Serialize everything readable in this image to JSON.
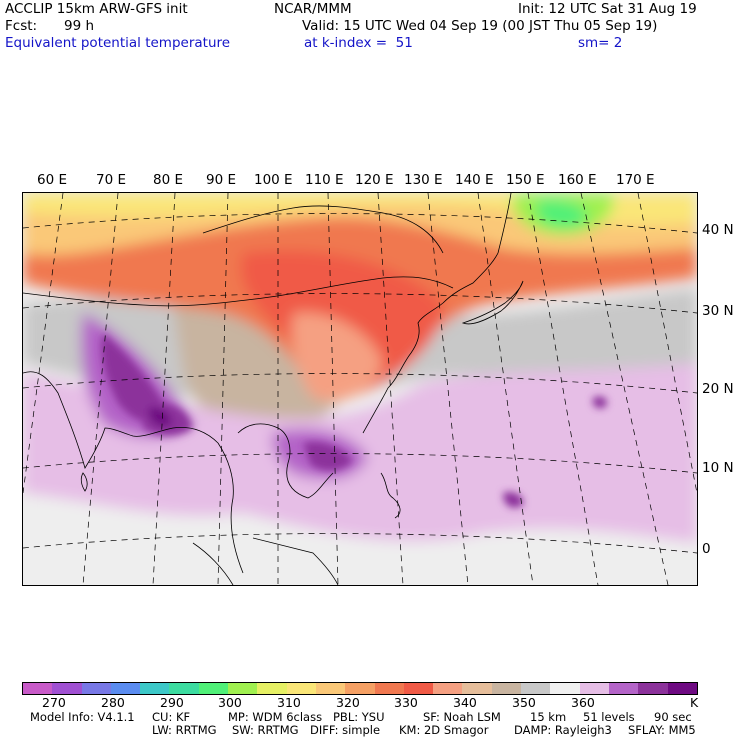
{
  "header": {
    "model_title": "ACCLIP 15km ARW-GFS init",
    "org": "NCAR/MMM",
    "init": "Init: 12 UTC Sat 31 Aug 19",
    "fcst_label": "Fcst:",
    "fcst_value": "99 h",
    "valid": "Valid: 15 UTC Wed 04 Sep 19 (00 JST Thu 05 Sep 19)",
    "field": "Equivalent potential temperature",
    "level": "at k-index =  51",
    "smooth": "sm= 2"
  },
  "map": {
    "lon_labels": [
      "60 E",
      "70 E",
      "80 E",
      "90 E",
      "100 E",
      "110 E",
      "120 E",
      "130 E",
      "140 E",
      "150 E",
      "160 E",
      "170 E"
    ],
    "lat_labels": [
      "40 N",
      "30 N",
      "20 N",
      "10 N",
      "0"
    ]
  },
  "colorbar": {
    "colors": [
      "#c85ac8",
      "#a050d2",
      "#7878e6",
      "#5a8cf0",
      "#3cc8c8",
      "#3cdca0",
      "#50f078",
      "#a0f050",
      "#e6f064",
      "#fae678",
      "#fac878",
      "#f5a064",
      "#f07850",
      "#f05a46",
      "#f5a082",
      "#e6be9b",
      "#c8b4a0",
      "#c8c8c8",
      "#f0f0f0",
      "#e6bee6",
      "#b464c8",
      "#8c329b",
      "#6e0a82"
    ],
    "labels": [
      "270",
      "280",
      "290",
      "300",
      "310",
      "320",
      "330",
      "340",
      "350",
      "360"
    ],
    "unit": "K"
  },
  "footer": {
    "line1": [
      "Model Info: V4.1.1",
      "CU: KF",
      "MP: WDM 6class",
      "PBL: YSU",
      "SF: Noah LSM",
      "15 km",
      "51 levels",
      "90 sec"
    ],
    "line2": [
      "LW: RRTMG",
      "SW: RRTMG",
      "DIFF: simple",
      "KM: 2D Smagor",
      "DAMP: Rayleigh3",
      "SFLAY: MM5"
    ]
  }
}
